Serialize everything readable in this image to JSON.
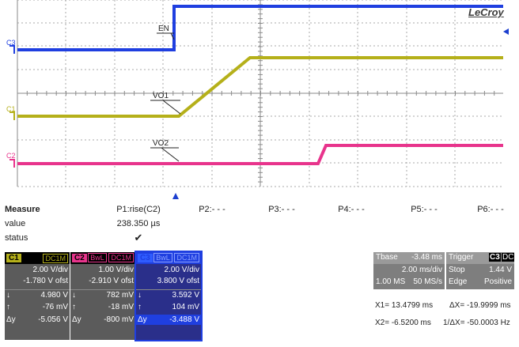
{
  "brand": "LeCroy",
  "traces": {
    "c1_tag": "C1",
    "c2_tag": "C2",
    "c3_tag": "C3",
    "en_label": "EN",
    "vo1_label": "VO1",
    "vo2_label": "VO2"
  },
  "colors": {
    "c1": "#b5b01a",
    "c2": "#e8348c",
    "c3": "#1f3fe0",
    "grid": "#9a9a9a",
    "panel": "#5b5b5b"
  },
  "measure": {
    "header": "Measure",
    "row_value": "value",
    "row_status": "status",
    "params": [
      {
        "label": "P1:rise(C2)",
        "value": "238.350 µs",
        "status": "✔"
      },
      {
        "label": "P2:- - -",
        "value": "",
        "status": ""
      },
      {
        "label": "P3:- - -",
        "value": "",
        "status": ""
      },
      {
        "label": "P4:- - -",
        "value": "",
        "status": ""
      },
      {
        "label": "P5:- - -",
        "value": "",
        "status": ""
      },
      {
        "label": "P6:- - -",
        "value": "",
        "status": ""
      }
    ]
  },
  "channels": [
    {
      "num": "C1",
      "coupling": "DC1M",
      "bwl": "",
      "vdiv": "2.00 V/div",
      "ofst": "-1.780 V ofst",
      "down": "4.980 V",
      "up": "-76 mV",
      "dy": "-5.056 V"
    },
    {
      "num": "C2",
      "coupling": "DC1M",
      "bwl": "BwL",
      "vdiv": "1.00 V/div",
      "ofst": "-2.910 V ofst",
      "down": "782 mV",
      "up": "-18 mV",
      "dy": "-800 mV"
    },
    {
      "num": "C3",
      "coupling": "DC1M",
      "bwl": "BwL",
      "vdiv": "2.00 V/div",
      "ofst": "3.800 V ofst",
      "down": "3.592 V",
      "up": "104 mV",
      "dy": "-3.488 V"
    }
  ],
  "timebase": {
    "label": "Tbase",
    "delay": "-3.48 ms",
    "tdiv": "2.00 ms/div",
    "samples": "1.00 MS",
    "rate": "50 MS/s"
  },
  "trigger": {
    "label": "Trigger",
    "source": "C3",
    "coupling": "DC",
    "mode": "Stop",
    "level": "1.44 V",
    "type": "Edge",
    "slope": "Positive"
  },
  "cursors": {
    "x1": "X1= 13.4799 ms",
    "dx": "ΔX= -19.9999 ms",
    "x2": "X2= -6.5200 ms",
    "inv_dx": "1/ΔX= -50.0003 Hz"
  }
}
